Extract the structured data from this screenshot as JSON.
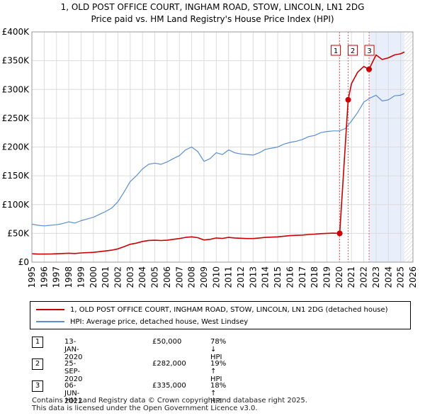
{
  "title_line1": "1, OLD POST OFFICE COURT, INGHAM ROAD, STOW, LINCOLN, LN1 2DG",
  "title_line2": "Price paid vs. HM Land Registry's House Price Index (HPI)",
  "colors": {
    "price_paid": "#cc0000",
    "hpi": "#5b8fd4",
    "shade": "#e8eefa"
  },
  "chart_data": {
    "type": "line",
    "xlim": [
      1995,
      2026
    ],
    "ylim": [
      0,
      400000
    ],
    "x_ticks": [
      "1995",
      "1996",
      "1997",
      "1998",
      "1999",
      "2000",
      "2001",
      "2002",
      "2003",
      "2004",
      "2005",
      "2006",
      "2007",
      "2008",
      "2009",
      "2010",
      "2011",
      "2012",
      "2013",
      "2014",
      "2015",
      "2016",
      "2017",
      "2018",
      "2019",
      "2020",
      "2021",
      "2022",
      "2023",
      "2024",
      "2025",
      "2026"
    ],
    "y_ticks": [
      {
        "value": 0,
        "label": "£0"
      },
      {
        "value": 50000,
        "label": "£50K"
      },
      {
        "value": 100000,
        "label": "£100K"
      },
      {
        "value": 150000,
        "label": "£150K"
      },
      {
        "value": 200000,
        "label": "£200K"
      },
      {
        "value": 250000,
        "label": "£250K"
      },
      {
        "value": 300000,
        "label": "£300K"
      },
      {
        "value": 350000,
        "label": "£350K"
      },
      {
        "value": 400000,
        "label": "£400K"
      }
    ],
    "series": [
      {
        "name": "HPI: Average price, detached house, West Lindsey",
        "x": [
          1995.0,
          1995.5,
          1996.0,
          1996.5,
          1997.0,
          1997.5,
          1998.0,
          1998.5,
          1999.0,
          1999.5,
          2000.0,
          2000.5,
          2001.0,
          2001.5,
          2002.0,
          2002.5,
          2003.0,
          2003.5,
          2004.0,
          2004.5,
          2005.0,
          2005.5,
          2006.0,
          2006.5,
          2007.0,
          2007.5,
          2008.0,
          2008.5,
          2009.0,
          2009.5,
          2010.0,
          2010.5,
          2011.0,
          2011.5,
          2012.0,
          2012.5,
          2013.0,
          2013.5,
          2014.0,
          2014.5,
          2015.0,
          2015.5,
          2016.0,
          2016.5,
          2017.0,
          2017.5,
          2018.0,
          2018.5,
          2019.0,
          2019.5,
          2020.0,
          2020.5,
          2021.0,
          2021.5,
          2022.0,
          2022.5,
          2023.0,
          2023.5,
          2024.0,
          2024.5,
          2025.0,
          2025.3
        ],
        "values": [
          66000,
          64000,
          63000,
          64000,
          65000,
          67000,
          70000,
          68000,
          72000,
          75000,
          78000,
          83000,
          88000,
          94000,
          105000,
          122000,
          140000,
          150000,
          162000,
          170000,
          172000,
          170000,
          174000,
          180000,
          185000,
          195000,
          200000,
          192000,
          175000,
          180000,
          190000,
          187000,
          195000,
          190000,
          188000,
          187000,
          186000,
          190000,
          196000,
          198000,
          200000,
          205000,
          208000,
          210000,
          213000,
          218000,
          220000,
          225000,
          227000,
          228000,
          228000,
          232000,
          245000,
          260000,
          278000,
          285000,
          290000,
          280000,
          282000,
          289000,
          290000,
          293000
        ]
      },
      {
        "name": "1, OLD POST OFFICE COURT, INGHAM ROAD, STOW, LINCOLN, LN1 2DG (detached house)",
        "x": [
          1995.0,
          1995.5,
          1996.0,
          1996.5,
          1997.0,
          1997.5,
          1998.0,
          1998.5,
          1999.0,
          1999.5,
          2000.0,
          2000.5,
          2001.0,
          2001.5,
          2002.0,
          2002.5,
          2003.0,
          2003.5,
          2004.0,
          2004.5,
          2005.0,
          2005.5,
          2006.0,
          2006.5,
          2007.0,
          2007.5,
          2008.0,
          2008.5,
          2009.0,
          2009.5,
          2010.0,
          2010.5,
          2011.0,
          2011.5,
          2012.0,
          2012.5,
          2013.0,
          2013.5,
          2014.0,
          2014.5,
          2015.0,
          2015.5,
          2016.0,
          2016.5,
          2017.0,
          2017.5,
          2018.0,
          2018.5,
          2019.0,
          2019.5,
          2020.04,
          2020.73,
          2021.0,
          2021.5,
          2022.0,
          2022.43,
          2023.0,
          2023.5,
          2024.0,
          2024.5,
          2025.0,
          2025.3
        ],
        "values": [
          14500,
          14000,
          14000,
          14200,
          14500,
          15000,
          15500,
          15000,
          16000,
          16500,
          17000,
          18200,
          19500,
          20800,
          23000,
          27000,
          31000,
          33000,
          36000,
          37700,
          38000,
          37500,
          38000,
          39600,
          41000,
          43000,
          44000,
          42500,
          38500,
          39600,
          42000,
          41200,
          43000,
          42000,
          41500,
          41000,
          41000,
          42000,
          43000,
          43500,
          44000,
          45000,
          46000,
          46500,
          47000,
          48000,
          48600,
          49500,
          50000,
          50300,
          50000,
          282000,
          310000,
          330000,
          340000,
          335000,
          360000,
          352000,
          355000,
          360000,
          362000,
          365000
        ]
      }
    ],
    "transactions": [
      {
        "label": "1",
        "x": 2020.04,
        "value": 50000,
        "date": "13-JAN-2020",
        "price": "£50,000",
        "hpi": "78% ↓ HPI"
      },
      {
        "label": "2",
        "x": 2020.73,
        "value": 282000,
        "date": "25-SEP-2020",
        "price": "£282,000",
        "hpi": "19% ↑ HPI"
      },
      {
        "label": "3",
        "x": 2022.43,
        "value": 335000,
        "date": "06-JUN-2022",
        "price": "£335,000",
        "hpi": "18% ↑ HPI"
      }
    ],
    "shaded_from": 2022.43
  },
  "legend": {
    "price_paid_label": "1, OLD POST OFFICE COURT, INGHAM ROAD, STOW, LINCOLN, LN1 2DG (detached house)",
    "hpi_label": "HPI: Average price, detached house, West Lindsey"
  },
  "footer_line1": "Contains HM Land Registry data © Crown copyright and database right 2025.",
  "footer_line2": "This data is licensed under the Open Government Licence v3.0."
}
